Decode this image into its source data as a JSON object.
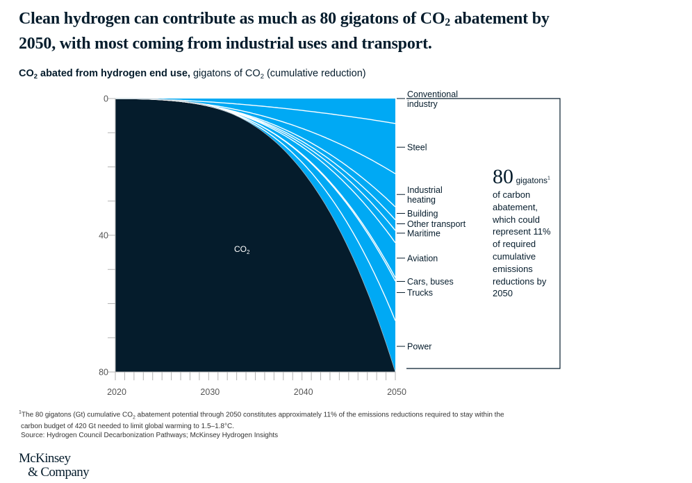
{
  "header": {
    "title_part1": "Clean hydrogen can contribute as much as 80 gigatons of CO",
    "title_sub": "2",
    "title_part2": " abatement by 2050, with most coming from industrial uses and transport.",
    "subtitle_bold_part1": "CO",
    "subtitle_bold_sub": "2",
    "subtitle_bold_part2": " abated from hydrogen end use,",
    "subtitle_rest_part1": " gigatons of CO",
    "subtitle_rest_sub": "2",
    "subtitle_rest_part2": " (cumulative reduction)"
  },
  "callout": {
    "big_number": "80",
    "unit": "gigatons",
    "footnote_marker": "1",
    "text": "of carbon abatement, which could represent 11% of required cumulative emissions reductions by 2050"
  },
  "chart_data": {
    "type": "area",
    "title": "CO2 abated from hydrogen end use, gigatons of CO2 (cumulative reduction)",
    "xlabel": "",
    "ylabel": "gigatons of CO2 (cumulative reduction)",
    "x_range": [
      2020,
      2050
    ],
    "x_ticks": [
      2020,
      2030,
      2040,
      2050
    ],
    "x_minor_step": 1,
    "y_range": [
      0,
      80
    ],
    "y_inverted": true,
    "y_ticks": [
      0,
      40,
      80
    ],
    "y_minor_step": 10,
    "grid": false,
    "total_cumulative": [
      {
        "x": 2020,
        "y": 0
      },
      {
        "x": 2030,
        "y": 2.3
      },
      {
        "x": 2040,
        "y": 20.5
      },
      {
        "x": 2050,
        "y": 80
      }
    ],
    "series": [
      {
        "name": "Conventional industry",
        "value_2050": 7.3
      },
      {
        "name": "Steel",
        "value_2050": 14.7
      },
      {
        "name": "Industrial heating",
        "value_2050": 9.7
      },
      {
        "name": "Building",
        "value_2050": 3.8
      },
      {
        "name": "Other transport",
        "value_2050": 3.1
      },
      {
        "name": "Maritime",
        "value_2050": 3.6
      },
      {
        "name": "Aviation",
        "value_2050": 10.2
      },
      {
        "name": "Cars, buses",
        "value_2050": 1.0
      },
      {
        "name": "Trucks",
        "value_2050": 11.6
      },
      {
        "name": "Power",
        "value_2050": 15.0
      }
    ],
    "series_labels": [
      "Conventional\nindustry",
      "Steel",
      "Industrial\nheating",
      "Building",
      "Other transport",
      "Maritime",
      "Aviation",
      "Cars, buses",
      "Trucks",
      "Power"
    ],
    "remaining_region_label": "CO2",
    "colors": {
      "abated": "#00a9f4",
      "remaining": "#051c2c",
      "separator": "#ffffff",
      "axis": "#b3b3b3",
      "tick_text": "#555555"
    }
  },
  "footnotes": {
    "note1_marker": "1",
    "note1_part1": "The 80 gigatons (Gt) cumulative CO",
    "note1_sub": "2",
    "note1_part2": " abatement potential through 2050 constitutes approximately 11% of the emissions reductions required to stay within the",
    "note1_line2": "carbon budget of 420 Gt needed to limit global warming to 1.5–1.8°C.",
    "source": "Source: Hydrogen Council Decarbonization Pathways; McKinsey Hydrogen Insights"
  },
  "logo": {
    "line1": "McKinsey",
    "line2": "& Company"
  }
}
